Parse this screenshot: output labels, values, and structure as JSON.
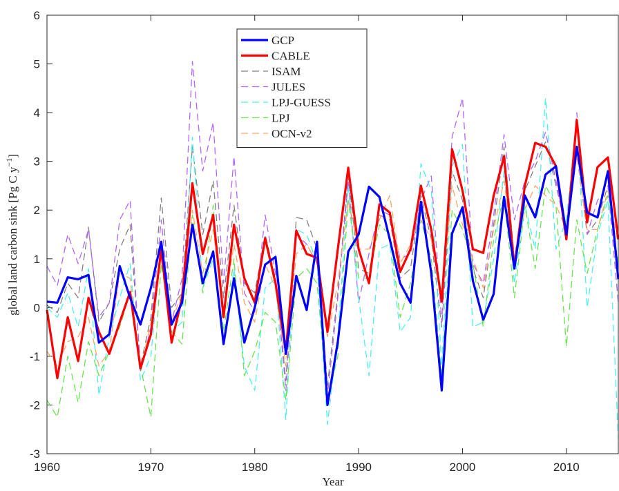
{
  "chart_data": {
    "type": "line",
    "xlabel": "Year",
    "ylabel": "global land carbon sink [Pg C y",
    "ylabel_sup": "−1",
    "ylabel_end": "]",
    "xlim": [
      1960,
      2015
    ],
    "xticks": [
      1960,
      1970,
      1980,
      1990,
      2000,
      2010
    ],
    "ylim": [
      -3,
      6
    ],
    "yticks": [
      -3,
      -2,
      -1,
      0,
      1,
      2,
      3,
      4,
      5,
      6
    ],
    "legend": "top-center",
    "x": [
      1960,
      1961,
      1962,
      1963,
      1964,
      1965,
      1966,
      1967,
      1968,
      1969,
      1970,
      1971,
      1972,
      1973,
      1974,
      1975,
      1976,
      1977,
      1978,
      1979,
      1980,
      1981,
      1982,
      1983,
      1984,
      1985,
      1986,
      1987,
      1988,
      1989,
      1990,
      1991,
      1992,
      1993,
      1994,
      1995,
      1996,
      1997,
      1998,
      1999,
      2000,
      2001,
      2002,
      2003,
      2004,
      2005,
      2006,
      2007,
      2008,
      2009,
      2010,
      2011,
      2012,
      2013,
      2014,
      2015
    ],
    "series": [
      {
        "name": "GCP",
        "color": "#0000ff",
        "style": "solid",
        "values": [
          0.12,
          0.1,
          0.62,
          0.58,
          0.67,
          -0.72,
          -0.55,
          0.85,
          0.2,
          -0.35,
          0.4,
          1.35,
          -0.35,
          0.1,
          1.7,
          0.5,
          1.15,
          -0.75,
          0.6,
          -0.72,
          0.0,
          0.88,
          1.04,
          -0.95,
          0.65,
          -0.05,
          1.35,
          -2.0,
          -0.7,
          1.15,
          1.5,
          2.48,
          2.27,
          1.4,
          0.5,
          0.1,
          2.17,
          0.7,
          -1.7,
          1.52,
          2.06,
          0.55,
          -0.25,
          0.28,
          2.27,
          0.8,
          2.3,
          1.85,
          2.73,
          2.9,
          1.5,
          3.3,
          1.95,
          1.85,
          2.8,
          0.58
        ]
      },
      {
        "name": "CABLE",
        "color": "#ff0000",
        "style": "solid",
        "values": [
          -0.05,
          -1.45,
          -0.2,
          -1.1,
          0.2,
          -0.5,
          -0.95,
          -0.3,
          0.32,
          -1.25,
          -0.55,
          1.2,
          -0.72,
          0.2,
          2.55,
          1.1,
          1.9,
          -0.2,
          1.7,
          0.6,
          0.1,
          1.42,
          0.5,
          -0.9,
          1.58,
          1.1,
          1.02,
          -0.5,
          1.2,
          2.87,
          1.2,
          0.5,
          2.12,
          1.95,
          0.73,
          1.2,
          2.5,
          1.6,
          0.12,
          3.25,
          2.4,
          1.2,
          1.12,
          2.3,
          3.1,
          0.8,
          2.5,
          3.38,
          3.3,
          2.9,
          1.4,
          3.85,
          1.75,
          2.88,
          3.08,
          1.4
        ]
      },
      {
        "name": "ISAM",
        "color": "#808080",
        "style": "dashed",
        "values": [
          0.05,
          -0.1,
          0.5,
          0.2,
          1.65,
          -0.3,
          0.1,
          1.2,
          1.7,
          -1.2,
          -0.2,
          2.25,
          0.0,
          0.3,
          3.3,
          1.5,
          2.6,
          0.2,
          2.1,
          0.5,
          0.3,
          1.5,
          0.6,
          -1.5,
          1.85,
          1.8,
          1.2,
          -1.6,
          0.3,
          2.7,
          0.8,
          0.7,
          1.9,
          1.8,
          0.6,
          0.8,
          2.3,
          1.4,
          -0.4,
          2.8,
          2.2,
          0.8,
          0.2,
          1.7,
          3.3,
          1.0,
          2.4,
          2.9,
          3.4,
          2.5,
          1.6,
          3.3,
          1.5,
          1.8,
          2.5,
          0.1
        ]
      },
      {
        "name": "JULES",
        "color": "#b266ff",
        "style": "dashed",
        "values": [
          0.85,
          0.45,
          1.5,
          0.9,
          1.6,
          -0.2,
          0.1,
          1.8,
          2.2,
          -1.3,
          -0.4,
          1.8,
          -0.3,
          0.6,
          5.05,
          2.8,
          3.8,
          0.5,
          3.1,
          0.3,
          -0.1,
          1.9,
          0.7,
          -1.7,
          1.5,
          1.3,
          0.9,
          -1.8,
          0.2,
          2.6,
          0.1,
          1.1,
          2.0,
          1.9,
          1.0,
          1.1,
          2.2,
          2.7,
          -0.3,
          3.5,
          4.3,
          0.9,
          0.5,
          1.9,
          3.55,
          1.8,
          2.6,
          3.0,
          3.6,
          2.6,
          1.5,
          4.0,
          1.5,
          2.2,
          2.5,
          0.1
        ]
      },
      {
        "name": "LPJ-GUESS",
        "color": "#4cf0f0",
        "style": "dashed",
        "values": [
          0.0,
          -0.2,
          0.3,
          -0.4,
          0.8,
          -1.8,
          -0.6,
          0.2,
          0.9,
          -1.5,
          -1.0,
          1.3,
          -0.5,
          -0.3,
          3.5,
          0.4,
          1.0,
          -0.8,
          0.8,
          -1.2,
          -1.7,
          0.4,
          0.6,
          -2.3,
          1.6,
          1.5,
          0.9,
          -2.4,
          -0.6,
          2.5,
          0.2,
          -1.4,
          1.2,
          1.3,
          -0.5,
          -0.2,
          2.95,
          2.4,
          -1.2,
          2.9,
          3.35,
          -0.4,
          -0.3,
          1.0,
          2.8,
          0.5,
          2.1,
          1.2,
          4.3,
          1.2,
          1.8,
          3.8,
          0.0,
          1.5,
          2.2,
          -2.7
        ]
      },
      {
        "name": "LPJ",
        "color": "#66e64c",
        "style": "dashed",
        "values": [
          -1.9,
          -2.25,
          -1.0,
          -1.95,
          -0.7,
          -1.4,
          -0.9,
          -0.4,
          0.3,
          -1.2,
          -2.25,
          0.9,
          -0.5,
          -0.75,
          1.9,
          0.3,
          2.1,
          -0.5,
          1.0,
          -1.4,
          -0.9,
          -0.1,
          -0.3,
          -1.9,
          0.6,
          0.8,
          0.5,
          -1.9,
          -1.0,
          2.2,
          0.6,
          0.6,
          1.7,
          1.5,
          -0.2,
          0.5,
          1.8,
          1.0,
          -1.4,
          2.0,
          1.6,
          0.9,
          -0.4,
          1.4,
          2.3,
          0.2,
          2.1,
          0.8,
          2.5,
          2.1,
          -0.8,
          1.8,
          0.7,
          1.6,
          2.3,
          0.9
        ]
      },
      {
        "name": "OCN-v2",
        "color": "#ffa566",
        "style": "dashed",
        "values": [
          -0.9,
          -1.2,
          -0.7,
          -0.6,
          -0.2,
          -1.2,
          -0.9,
          0.7,
          0.6,
          -1.3,
          -0.3,
          1.0,
          -0.3,
          0.3,
          2.0,
          0.7,
          1.6,
          -0.1,
          1.3,
          0.1,
          -0.3,
          0.9,
          0.4,
          -1.2,
          1.1,
          1.3,
          0.9,
          -0.6,
          0.5,
          2.2,
          1.2,
          1.2,
          1.8,
          2.3,
          0.9,
          1.3,
          1.8,
          1.4,
          0.1,
          2.5,
          1.7,
          1.0,
          0.4,
          1.6,
          2.6,
          1.0,
          2.0,
          2.5,
          2.3,
          2.1,
          1.6,
          3.1,
          1.6,
          1.6,
          2.4,
          1.3
        ]
      }
    ]
  }
}
